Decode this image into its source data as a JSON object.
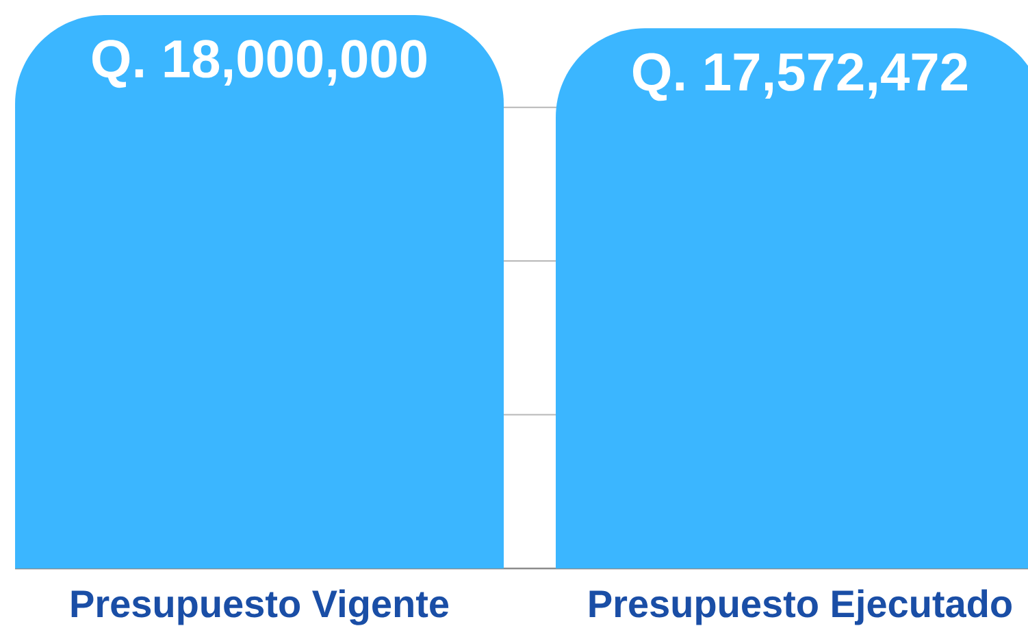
{
  "chart_data": {
    "type": "bar",
    "categories": [
      "Presupuesto Vigente",
      "Presupuesto Ejecutado"
    ],
    "values": [
      18000000,
      17572472
    ],
    "value_labels": [
      "Q. 18,000,000",
      "Q. 17,572,472"
    ],
    "color": "#3bb6ff",
    "yticks": [
      {
        "value": 5000000,
        "label": null
      },
      {
        "value": 10000000,
        "label": null
      },
      {
        "value": 15000000,
        "label": null
      }
    ],
    "grid": "y",
    "tick_labels": "x"
  }
}
